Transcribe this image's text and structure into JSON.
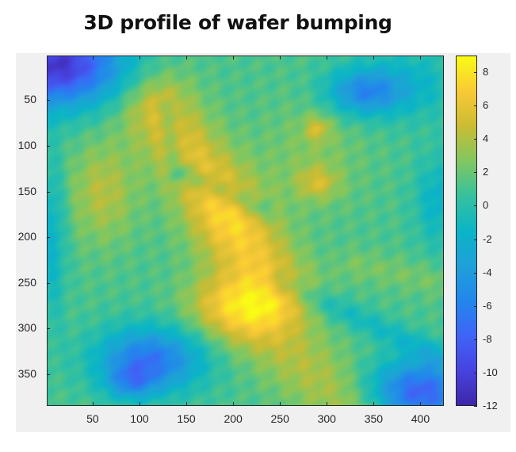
{
  "title": "3D profile of wafer bumping",
  "chart_data": {
    "type": "heatmap",
    "title": "3D profile of wafer bumping",
    "xlabel": "",
    "ylabel": "",
    "colormap": "parula",
    "xlim": [
      1,
      425
    ],
    "ylim": [
      1,
      385
    ],
    "y_reversed": true,
    "x_ticks": [
      50,
      100,
      150,
      200,
      250,
      300,
      350,
      400
    ],
    "y_ticks": [
      50,
      100,
      150,
      200,
      250,
      300,
      350
    ],
    "colorbar": {
      "range": [
        -12,
        9
      ],
      "ticks": [
        8,
        6,
        4,
        2,
        0,
        -2,
        -4,
        -6,
        -8,
        -10,
        -12
      ]
    },
    "features": [
      {
        "desc": "deep depression top-left corner",
        "x": 20,
        "y": 20,
        "value": -11
      },
      {
        "desc": "raised ridge diagonal through center",
        "x": 190,
        "y": 170,
        "value": 6
      },
      {
        "desc": "elevated bump region lower-center",
        "x": 200,
        "y": 280,
        "value": 7
      },
      {
        "desc": "round bump top-right with central peaks",
        "x": 290,
        "y": 110,
        "value": 3
      },
      {
        "desc": "blue rim around top-right bump",
        "x": 340,
        "y": 50,
        "value": -7
      },
      {
        "desc": "left plateau",
        "x": 60,
        "y": 150,
        "value": 4
      },
      {
        "desc": "bowl depression bottom-left",
        "x": 110,
        "y": 330,
        "value": -10
      },
      {
        "desc": "depression bottom-right corner",
        "x": 400,
        "y": 370,
        "value": -10
      },
      {
        "desc": "ridge bottom-center diagonal",
        "x": 280,
        "y": 360,
        "value": 4
      }
    ]
  },
  "axes": {
    "x_tick_labels": [
      "50",
      "100",
      "150",
      "200",
      "250",
      "300",
      "350",
      "400"
    ],
    "y_tick_labels": [
      "50",
      "100",
      "150",
      "200",
      "250",
      "300",
      "350"
    ]
  },
  "colorbar": {
    "tick_labels": [
      "8",
      "6",
      "4",
      "2",
      "0",
      "-2",
      "-4",
      "-6",
      "-8",
      "-10",
      "-12"
    ]
  },
  "colors": {
    "figure_bg": "#f0f0f0",
    "axis": "#262626"
  }
}
